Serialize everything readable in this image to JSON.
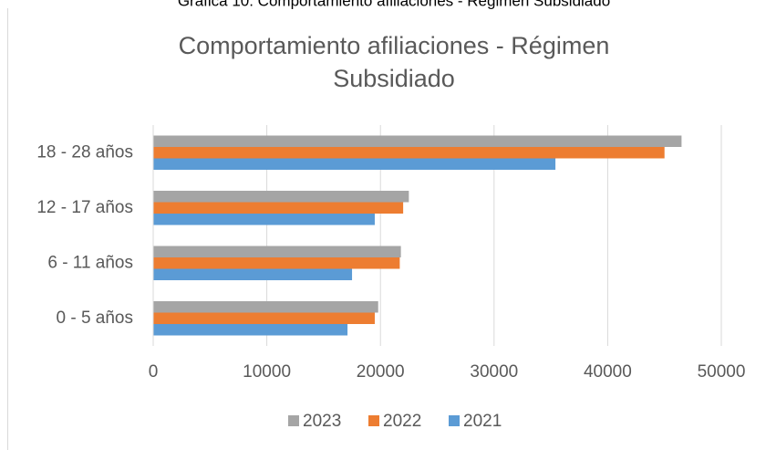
{
  "caption": "Gráfica 10. Comportamiento afiliaciones - Régimen Subsidiado",
  "chart_data": {
    "type": "hbar",
    "title": [
      "Comportamiento afiliaciones - Régimen",
      "Subsidiado"
    ],
    "categories": [
      "0 - 5 años",
      "6 - 11 años",
      "12 - 17 años",
      "18 - 28 años"
    ],
    "series": [
      {
        "name": "2023",
        "color": "#a5a5a5",
        "values": [
          19800,
          21800,
          22500,
          46500
        ]
      },
      {
        "name": "2022",
        "color": "#ed7d31",
        "values": [
          19500,
          21700,
          22000,
          45000
        ]
      },
      {
        "name": "2021",
        "color": "#5b9bd5",
        "values": [
          17100,
          17500,
          19500,
          35400
        ]
      }
    ],
    "xlim": [
      0,
      50000
    ],
    "xticks": [
      0,
      10000,
      20000,
      30000,
      40000,
      50000
    ],
    "grid": true,
    "legend": "bottom"
  }
}
